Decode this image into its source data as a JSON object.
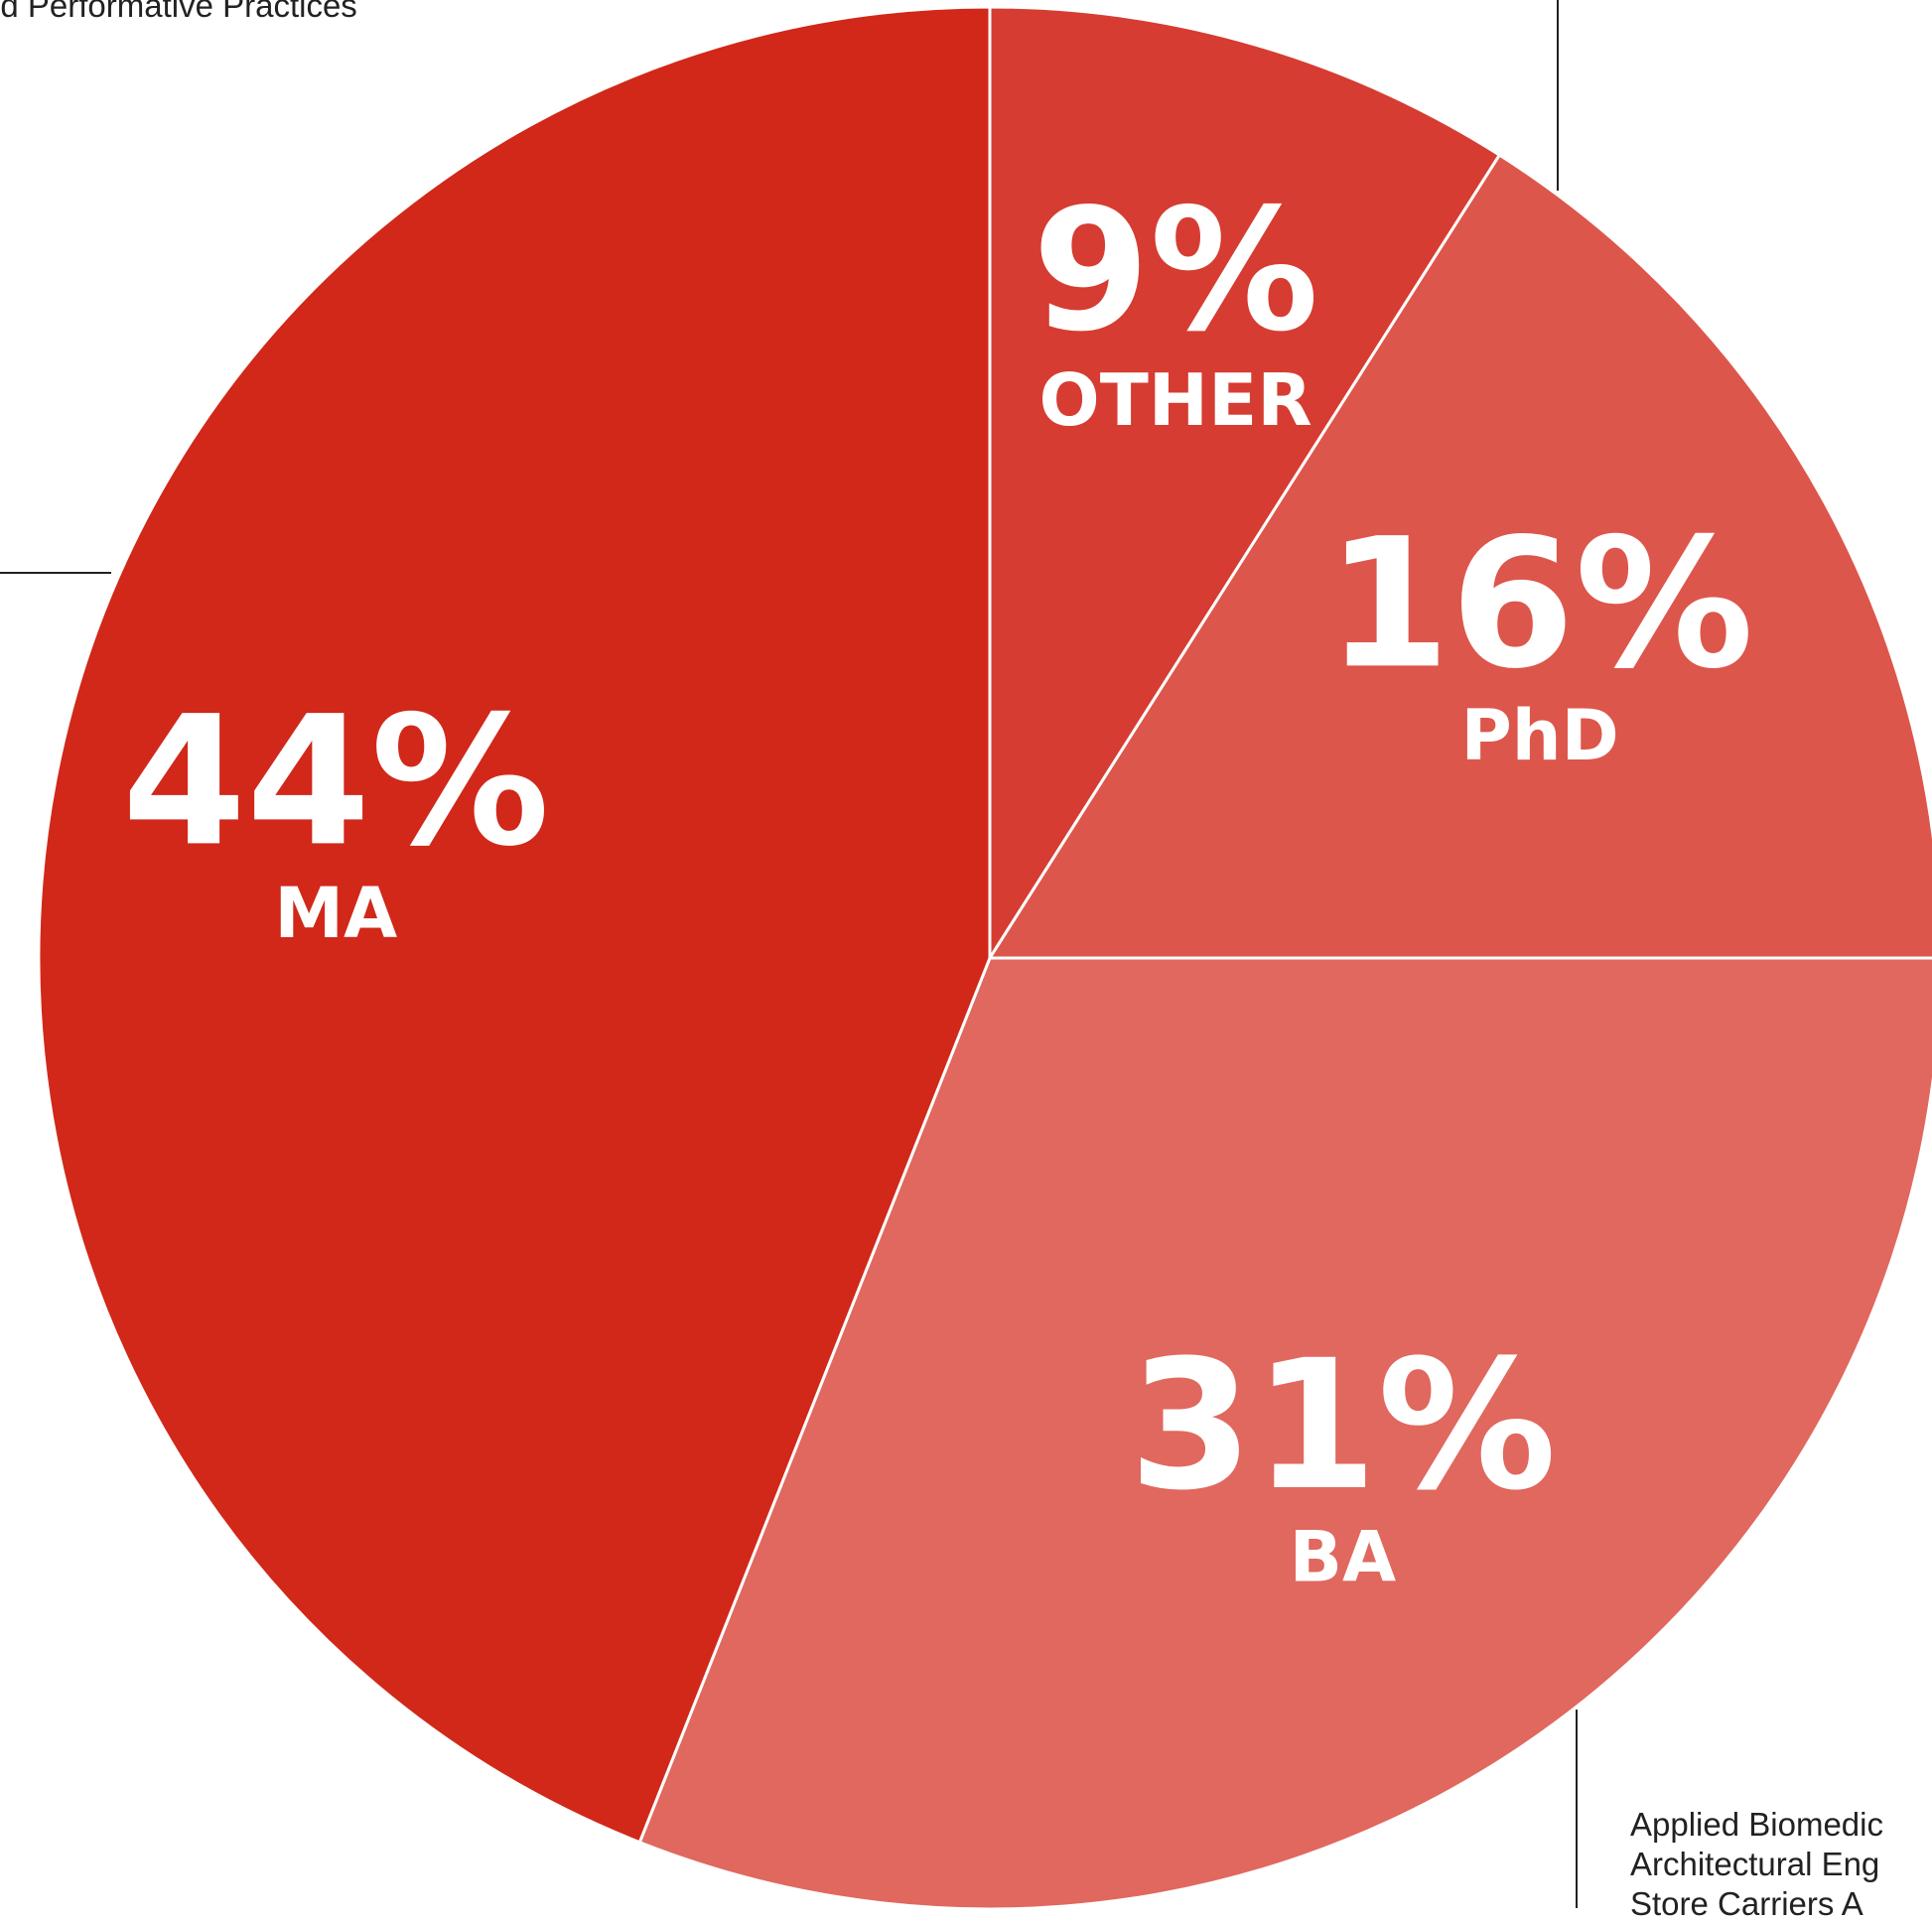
{
  "chart_data": {
    "type": "pie",
    "title": "",
    "slices": [
      {
        "label": "OTHER",
        "value": 9,
        "display": "9%",
        "color": "#d63c31"
      },
      {
        "label": "PhD",
        "value": 16,
        "display": "16%",
        "color": "#dd564b"
      },
      {
        "label": "BA",
        "value": 31,
        "display": "31%",
        "color": "#e0685e"
      },
      {
        "label": "MA",
        "value": 44,
        "display": "44%",
        "color": "#d12819"
      }
    ],
    "annotations": {
      "top_left": "nd Performative Practices",
      "bottom_right": [
        "Applied Biomedic",
        "Architectural Eng",
        "Store Carriers A"
      ]
    }
  }
}
